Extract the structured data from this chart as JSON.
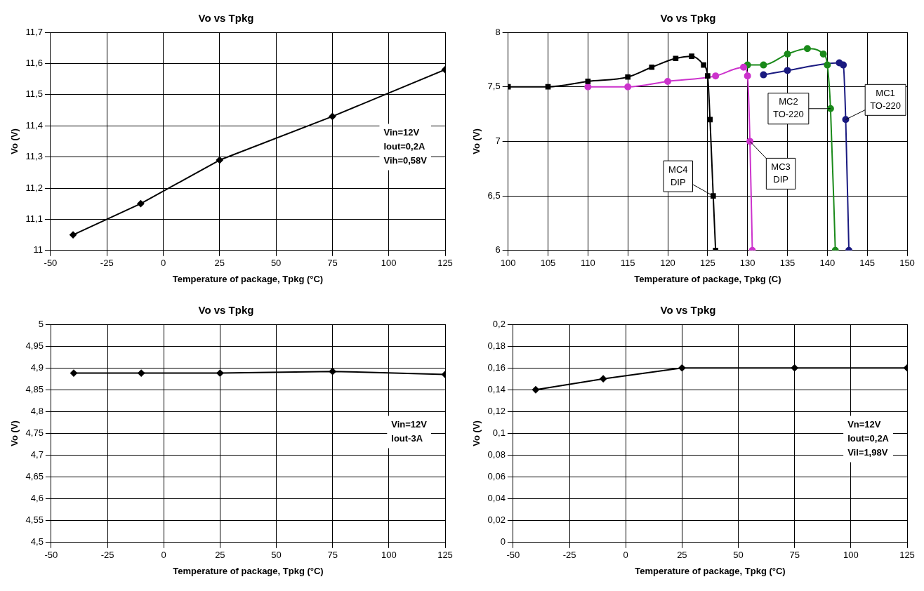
{
  "chart_data": [
    {
      "type": "line",
      "title": "Vo vs Tpkg",
      "xlabel": "Temperature of package, Tpkg (°C)",
      "ylabel": "Vo (V)",
      "grid": true,
      "marker": "diamond",
      "line_style": "solid",
      "xlim": [
        -50,
        125
      ],
      "xticks": [
        -50,
        -25,
        0,
        25,
        50,
        75,
        100,
        125
      ],
      "ylim": [
        11,
        11.7
      ],
      "yticks": [
        11,
        {
          "value": 11.1,
          "label": "11,1"
        },
        {
          "value": 11.2,
          "label": "11,2"
        },
        {
          "value": 11.3,
          "label": "11,3"
        },
        {
          "value": 11.4,
          "label": "11,4"
        },
        {
          "value": 11.5,
          "label": "11,5"
        },
        {
          "value": 11.6,
          "label": "11,6"
        },
        {
          "value": 11.7,
          "label": "11,7"
        }
      ],
      "series": [
        {
          "color": "#000000",
          "x": [
            -40,
            -10,
            25,
            75,
            125
          ],
          "values": [
            11.05,
            11.15,
            11.29,
            11.43,
            11.58
          ]
        }
      ],
      "annotations": [
        "Vin=12V",
        "Iout=0,2A",
        "Vih=0,58V"
      ]
    },
    {
      "type": "line",
      "title": "Vo vs Tpkg",
      "xlabel": "Temperature of package, Tpkg (C)",
      "ylabel": "Vo (V)",
      "grid": true,
      "line_style": "solid",
      "xlim": [
        100,
        150
      ],
      "xticks": [
        100,
        105,
        110,
        115,
        120,
        125,
        130,
        135,
        140,
        145,
        150
      ],
      "ylim": [
        6,
        8
      ],
      "yticks": [
        6,
        {
          "value": 6.5,
          "label": "6,5"
        },
        7,
        {
          "value": 7.5,
          "label": "7,5"
        },
        8
      ],
      "series": [
        {
          "name": "MC4 DIP",
          "color": "#000000",
          "marker": "square",
          "x": [
            100,
            105,
            110,
            115,
            118,
            121,
            123,
            124.5,
            125,
            125.3,
            125.7,
            126
          ],
          "values": [
            7.5,
            7.5,
            7.55,
            7.59,
            7.68,
            7.76,
            7.78,
            7.7,
            7.6,
            7.2,
            6.5,
            6.0
          ]
        },
        {
          "name": "MC3 DIP",
          "color": "#cc33cc",
          "marker": "circle",
          "x": [
            110,
            115,
            120,
            126,
            129.5,
            130,
            130.3,
            130.6
          ],
          "values": [
            7.5,
            7.5,
            7.55,
            7.6,
            7.68,
            7.6,
            7.0,
            6.0
          ]
        },
        {
          "name": "MC2 TO-220",
          "color": "#1a8a1a",
          "marker": "circle",
          "x": [
            130,
            132,
            135,
            137.5,
            139.5,
            140,
            140.4,
            141
          ],
          "values": [
            7.7,
            7.7,
            7.8,
            7.85,
            7.8,
            7.7,
            7.3,
            6.0
          ]
        },
        {
          "name": "MC1 TO-220",
          "color": "#1a1a80",
          "marker": "circle",
          "x": [
            132,
            135,
            141.5,
            142,
            142.3,
            142.7
          ],
          "values": [
            7.61,
            7.65,
            7.72,
            7.7,
            7.2,
            6.0
          ]
        }
      ]
    },
    {
      "type": "line",
      "title": "Vo vs Tpkg",
      "xlabel": "Temperature of package, Tpkg (°C)",
      "ylabel": "Vo (V)",
      "grid": true,
      "marker": "diamond",
      "line_style": "solid",
      "xlim": [
        -50,
        125
      ],
      "xticks": [
        -50,
        -25,
        0,
        25,
        50,
        75,
        100,
        125
      ],
      "ylim": [
        4.5,
        5
      ],
      "yticks": [
        {
          "value": 4.5,
          "label": "4,5"
        },
        {
          "value": 4.55,
          "label": "4,55"
        },
        {
          "value": 4.6,
          "label": "4,6"
        },
        {
          "value": 4.65,
          "label": "4,65"
        },
        {
          "value": 4.7,
          "label": "4,7"
        },
        {
          "value": 4.75,
          "label": "4,75"
        },
        {
          "value": 4.8,
          "label": "4,8"
        },
        {
          "value": 4.85,
          "label": "4,85"
        },
        {
          "value": 4.9,
          "label": "4,9"
        },
        {
          "value": 4.95,
          "label": "4,95"
        },
        5
      ],
      "series": [
        {
          "color": "#000000",
          "x": [
            -40,
            -10,
            25,
            75,
            125
          ],
          "values": [
            4.888,
            4.888,
            4.888,
            4.892,
            4.885
          ]
        }
      ],
      "annotations": [
        "Vin=12V",
        "Iout-3A"
      ]
    },
    {
      "type": "line",
      "title": "Vo vs Tpkg",
      "xlabel": "Temperature of package, Tpkg (°C)",
      "ylabel": "Vo (V)",
      "grid": true,
      "marker": "diamond",
      "line_style": "solid",
      "xlim": [
        -50,
        125
      ],
      "xticks": [
        -50,
        -25,
        0,
        25,
        50,
        75,
        100,
        125
      ],
      "ylim": [
        0,
        0.2
      ],
      "yticks": [
        0,
        {
          "value": 0.02,
          "label": "0,02"
        },
        {
          "value": 0.04,
          "label": "0,04"
        },
        {
          "value": 0.06,
          "label": "0,06"
        },
        {
          "value": 0.08,
          "label": "0,08"
        },
        {
          "value": 0.1,
          "label": "0,1"
        },
        {
          "value": 0.12,
          "label": "0,12"
        },
        {
          "value": 0.14,
          "label": "0,14"
        },
        {
          "value": 0.16,
          "label": "0,16"
        },
        {
          "value": 0.18,
          "label": "0,18"
        },
        {
          "value": 0.2,
          "label": "0,2"
        }
      ],
      "series": [
        {
          "color": "#000000",
          "x": [
            -40,
            -10,
            25,
            75,
            125
          ],
          "values": [
            0.14,
            0.15,
            0.16,
            0.16,
            0.16
          ]
        }
      ],
      "annotations": [
        "Vn=12V",
        "Iout=0,2A",
        "Vil=1,98V"
      ]
    }
  ]
}
